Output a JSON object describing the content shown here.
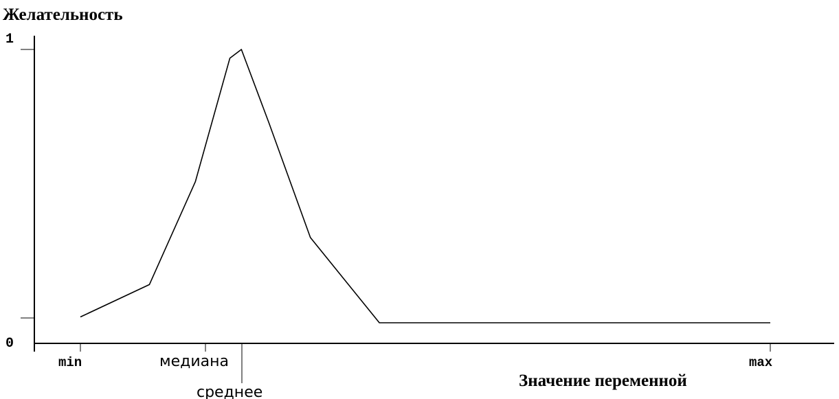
{
  "chart_data": {
    "type": "line",
    "ylabel": "Желательность",
    "xlabel": "Значение переменной",
    "y_ticks": [
      "1",
      "0"
    ],
    "x_ticks": [
      "min",
      "медиана",
      "среднее",
      "max"
    ],
    "x": [
      0,
      3,
      5,
      6.5,
      7,
      8.2,
      10,
      13,
      17,
      30
    ],
    "y": [
      0.09,
      0.2,
      0.55,
      0.97,
      1.0,
      0.75,
      0.36,
      0.07,
      0.07,
      0.07
    ],
    "xlim": [
      -1.2,
      31.5
    ],
    "ylim": [
      0,
      1.1
    ],
    "grid": false
  },
  "colors": {
    "line": "#000000",
    "axis": "#000000",
    "background": "#ffffff"
  }
}
